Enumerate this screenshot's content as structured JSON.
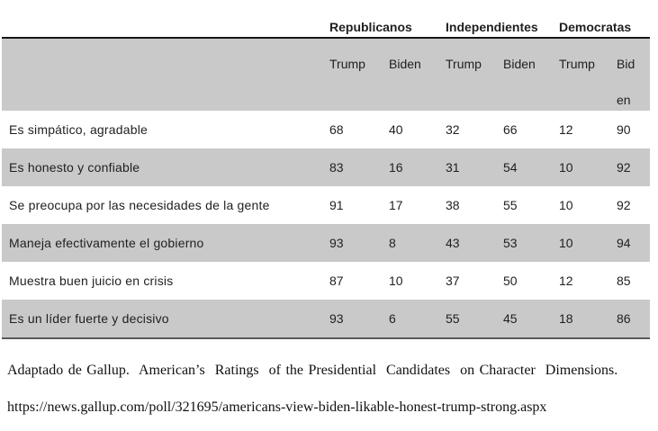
{
  "table": {
    "groups": [
      {
        "label": "Republicanos"
      },
      {
        "label": "Independientes"
      },
      {
        "label": "Democratas"
      }
    ],
    "subheaders": [
      "Trump",
      "Biden",
      "Trump",
      "Biden",
      "Trump",
      "Biden"
    ],
    "last_subheader_lines": [
      "Bid",
      "en"
    ],
    "rows": [
      {
        "label": "Es simpático, agradable",
        "values": [
          68,
          40,
          32,
          66,
          12,
          90
        ]
      },
      {
        "label": "Es honesto y confiable",
        "values": [
          83,
          16,
          31,
          54,
          10,
          92
        ]
      },
      {
        "label": "Se preocupa por las necesidades de la gente",
        "values": [
          91,
          17,
          38,
          55,
          10,
          92
        ]
      },
      {
        "label": "Maneja efectivamente el gobierno",
        "values": [
          93,
          8,
          43,
          53,
          10,
          94
        ]
      },
      {
        "label": "Muestra buen juicio en crisis",
        "values": [
          87,
          10,
          37,
          50,
          12,
          85
        ]
      },
      {
        "label": "Es un líder fuerte y decisivo",
        "values": [
          93,
          6,
          55,
          45,
          18,
          86
        ]
      }
    ]
  },
  "footer": {
    "source_line": "Adaptado de Gallup.  American’s  Ratings  of the Presidential  Candidates  on Character  Dimensions.",
    "url_line": "https://news.gallup.com/poll/321695/americans-view-biden-likable-honest-trump-strong.aspx"
  },
  "colors": {
    "row_shade": "#c9c9c9",
    "header_rule": "#161616",
    "bottom_rule": "#595959",
    "text": "#1f1f1f"
  },
  "chart_data": {
    "type": "table",
    "title": "",
    "column_groups": [
      "Republicanos",
      "Independientes",
      "Democratas"
    ],
    "columns": [
      "Republicanos Trump",
      "Republicanos Biden",
      "Independientes Trump",
      "Independientes Biden",
      "Democratas Trump",
      "Democratas Biden"
    ],
    "rows": [
      {
        "label": "Es simpático, agradable",
        "values": [
          68,
          40,
          32,
          66,
          12,
          90
        ]
      },
      {
        "label": "Es honesto y confiable",
        "values": [
          83,
          16,
          31,
          54,
          10,
          92
        ]
      },
      {
        "label": "Se preocupa por las necesidades de la gente",
        "values": [
          91,
          17,
          38,
          55,
          10,
          92
        ]
      },
      {
        "label": "Maneja efectivamente el gobierno",
        "values": [
          93,
          8,
          43,
          53,
          10,
          94
        ]
      },
      {
        "label": "Muestra buen juicio en crisis",
        "values": [
          87,
          10,
          37,
          50,
          12,
          85
        ]
      },
      {
        "label": "Es un líder fuerte y decisivo",
        "values": [
          93,
          6,
          55,
          45,
          18,
          86
        ]
      }
    ]
  }
}
